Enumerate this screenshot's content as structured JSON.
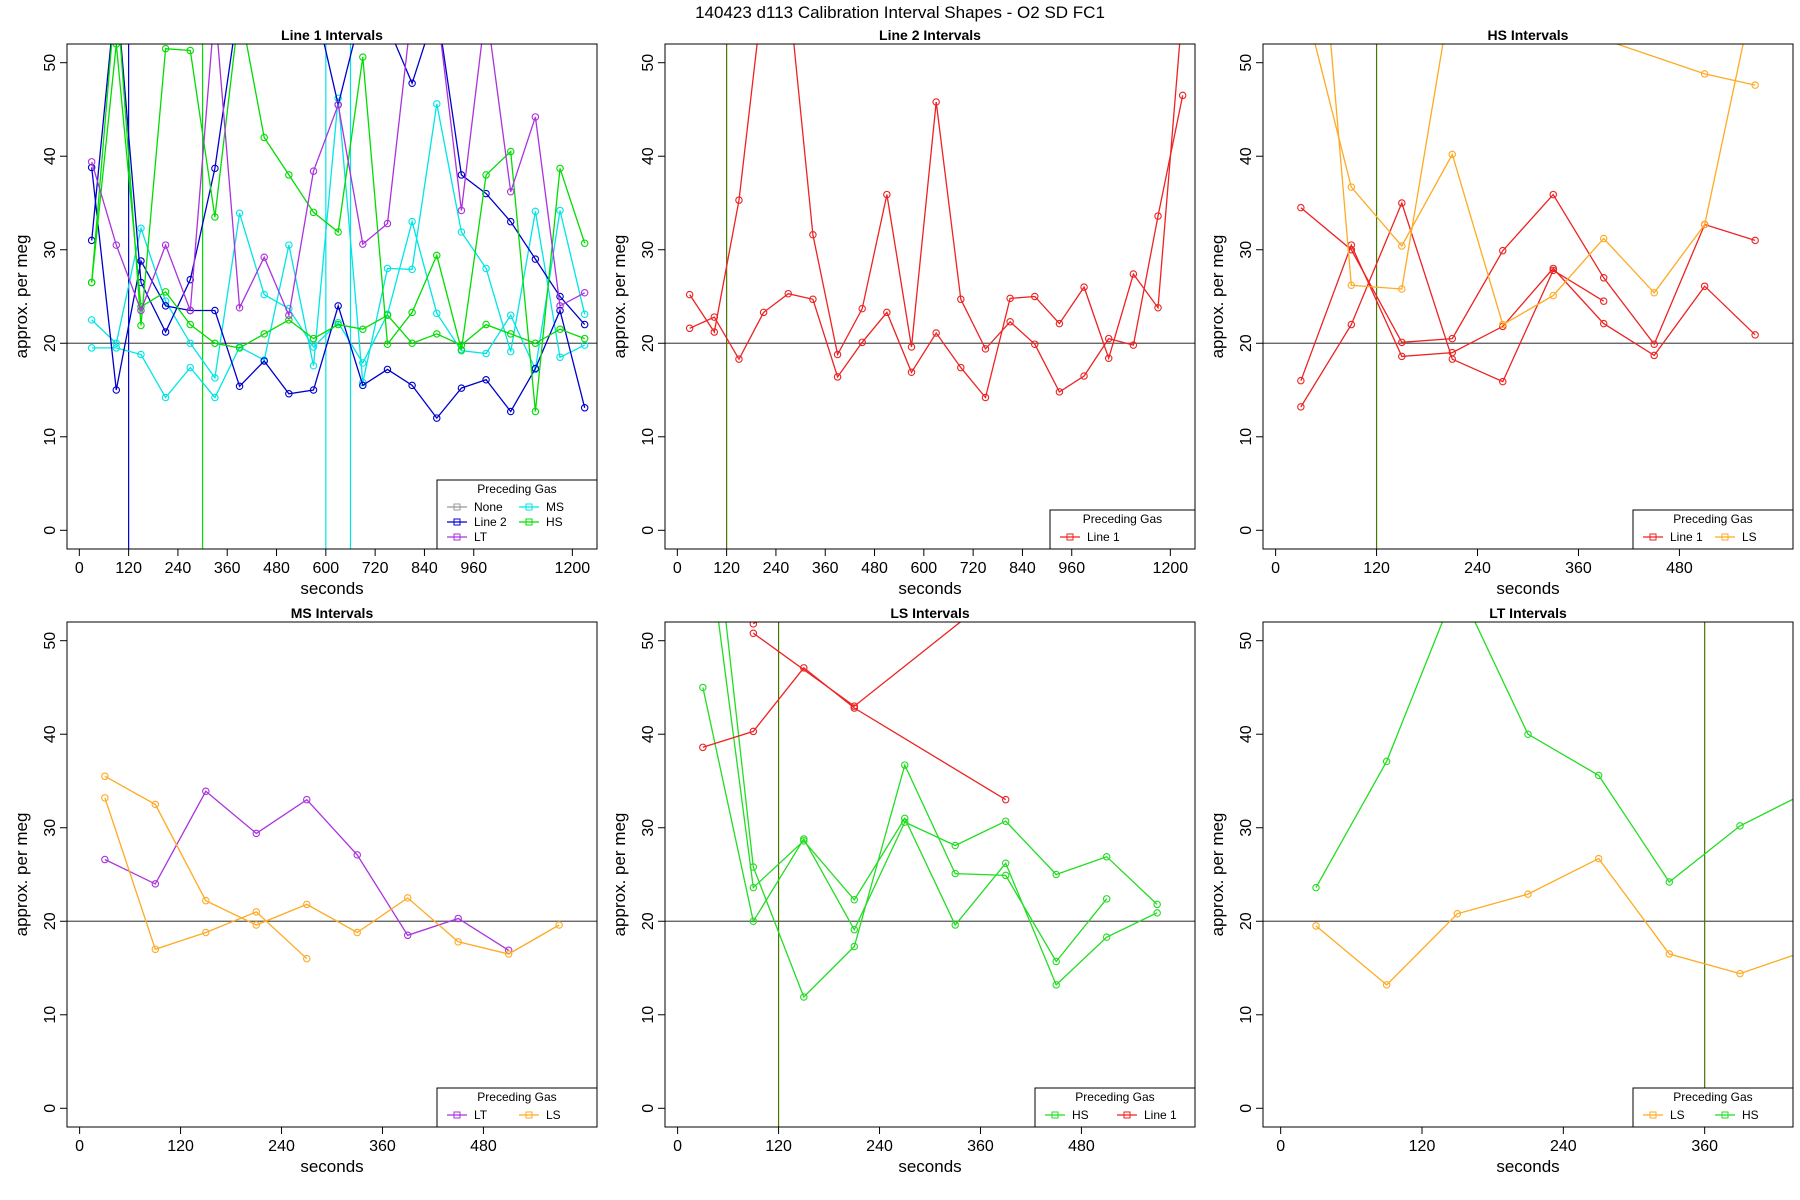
{
  "figure_title": "140423   d113   Calibration Interval Shapes - O2 SD FC1",
  "chart_data": [
    {
      "type": "line",
      "title": "Line 1 Intervals",
      "xlabel": "seconds",
      "ylabel": "approx. per meg",
      "xlim": [
        -30,
        1260
      ],
      "ylim": [
        -2,
        52
      ],
      "xticks": [
        0,
        120,
        240,
        360,
        480,
        600,
        720,
        840,
        960,
        1200
      ],
      "yticks": [
        0,
        10,
        20,
        30,
        40,
        50
      ],
      "hline": 20,
      "vlines": [
        {
          "x": 120,
          "color": "#0000cc"
        },
        {
          "x": 300,
          "color": "#00dd00"
        },
        {
          "x": 600,
          "color": "#00e5e5"
        },
        {
          "x": 660,
          "color": "#00e5e5"
        }
      ],
      "legend": {
        "title": "Preceding Gas",
        "position": "bottom-right",
        "columns": 2
      },
      "series": [
        {
          "name": "None",
          "color": "#999999",
          "x": [],
          "y": []
        },
        {
          "name": "MS",
          "color": "#00e5e5",
          "x": [
            30,
            90,
            150,
            210,
            270,
            330,
            390,
            450,
            510,
            570,
            630,
            690,
            750,
            810,
            870,
            930,
            990,
            1050,
            1110,
            1170,
            1230
          ],
          "y": [
            19.5,
            19.5,
            18.8,
            14.2,
            17.4,
            14.2,
            19.6,
            18.2,
            30.5,
            17.6,
            46.2,
            15.8,
            28.0,
            27.9,
            45.6,
            31.9,
            28.0,
            19.1,
            34.1,
            18.5,
            19.8
          ]
        },
        {
          "name": "MS",
          "color": "#00e5e5",
          "x": [
            30,
            90,
            150,
            210,
            270,
            330,
            390,
            450,
            510,
            570,
            630,
            690,
            750,
            810,
            870,
            930,
            990,
            1050,
            1110,
            1170,
            1230
          ],
          "y": [
            22.5,
            20.0,
            32.3,
            24.5,
            20.0,
            16.3,
            33.9,
            25.2,
            23.7,
            19.6,
            22.2,
            17.9,
            23.1,
            33.0,
            23.2,
            19.2,
            18.9,
            23.0,
            17.2,
            34.2,
            23.1
          ]
        },
        {
          "name": "Line 2",
          "color": "#0000cc",
          "x": [
            30,
            90,
            150,
            210,
            270,
            330,
            390,
            450,
            510,
            570,
            630,
            690,
            750,
            810,
            870,
            930,
            990,
            1050,
            1110,
            1170,
            1230
          ],
          "y": [
            38.8,
            15.0,
            28.8,
            24.0,
            23.5,
            23.5,
            15.4,
            18.1,
            14.6,
            15.0,
            24.0,
            15.5,
            17.2,
            15.5,
            12.0,
            15.2,
            16.1,
            12.7,
            17.3,
            23.5,
            13.1
          ]
        },
        {
          "name": "Line 2",
          "color": "#0000cc",
          "x": [
            30,
            90,
            150,
            210,
            270,
            330,
            390,
            450,
            510,
            570,
            630,
            690,
            750,
            810,
            870,
            930,
            990,
            1050,
            1110,
            1170,
            1230
          ],
          "y": [
            31.0,
            58.0,
            26.5,
            21.2,
            26.8,
            38.7,
            57.0,
            56.0,
            55.0,
            57.0,
            45.5,
            56.0,
            54.0,
            47.8,
            56.0,
            38.0,
            36.0,
            33.0,
            29.0,
            25.0,
            22.0
          ]
        },
        {
          "name": "HS",
          "color": "#00dd00",
          "x": [
            30,
            90,
            150,
            210,
            270,
            330,
            390,
            450,
            510,
            570,
            630,
            690,
            750,
            810,
            870,
            930,
            990,
            1050,
            1110,
            1170,
            1230
          ],
          "y": [
            26.5,
            58.0,
            21.9,
            51.5,
            51.3,
            33.5,
            56.0,
            42.0,
            38.0,
            34.0,
            31.9,
            50.6,
            19.9,
            23.3,
            29.4,
            19.3,
            38.0,
            40.5,
            12.7,
            38.7,
            30.7
          ]
        },
        {
          "name": "HS",
          "color": "#00dd00",
          "x": [
            30,
            90,
            150,
            210,
            270,
            330,
            390,
            450,
            510,
            570,
            630,
            690,
            750,
            810,
            870,
            930,
            990,
            1050,
            1110,
            1170,
            1230
          ],
          "y": [
            26.5,
            52.0,
            23.9,
            25.5,
            22.0,
            20.0,
            19.5,
            21.0,
            22.5,
            20.5,
            22.0,
            21.5,
            23.0,
            20.0,
            21.0,
            19.8,
            22.0,
            21.0,
            20.0,
            21.5,
            20.5
          ]
        },
        {
          "name": "LT",
          "color": "#aa33dd",
          "x": [
            30,
            90,
            150,
            210,
            270,
            330,
            390,
            450,
            510,
            570,
            630,
            690,
            750,
            810,
            870,
            930,
            990,
            1050,
            1110,
            1170,
            1230
          ],
          "y": [
            39.4,
            30.5,
            23.5,
            30.5,
            23.5,
            56.0,
            23.8,
            29.2,
            23.0,
            38.4,
            45.5,
            30.6,
            32.8,
            56.0,
            56.0,
            34.2,
            56.0,
            36.2,
            44.2,
            24.0,
            25.4
          ]
        }
      ]
    },
    {
      "type": "line",
      "title": "Line 2 Intervals",
      "xlabel": "seconds",
      "ylabel": "approx. per meg",
      "xlim": [
        -30,
        1260
      ],
      "ylim": [
        -2,
        52
      ],
      "xticks": [
        0,
        120,
        240,
        360,
        480,
        600,
        720,
        840,
        960,
        1200
      ],
      "yticks": [
        0,
        10,
        20,
        30,
        40,
        50
      ],
      "hline": 20,
      "vlines": [
        {
          "x": 120,
          "color": "#447700"
        }
      ],
      "legend": {
        "title": "Preceding Gas",
        "position": "bottom-right",
        "columns": 1
      },
      "series": [
        {
          "name": "Line 1",
          "color": "#ee2222",
          "x": [
            30,
            90,
            150,
            210,
            270,
            330,
            390,
            450,
            510,
            570,
            630,
            690,
            750,
            810,
            870,
            930,
            990,
            1050,
            1110,
            1170,
            1230
          ],
          "y": [
            21.6,
            22.8,
            18.3,
            23.3,
            25.3,
            24.7,
            16.4,
            20.1,
            23.3,
            16.9,
            21.1,
            17.4,
            14.2,
            24.8,
            25.0,
            22.1,
            26.0,
            18.4,
            27.4,
            23.8,
            56.0
          ]
        },
        {
          "name": "Line 1",
          "color": "#ee2222",
          "x": [
            30,
            90,
            150,
            210,
            270,
            330,
            390,
            450,
            510,
            570,
            630,
            690,
            750,
            810,
            870,
            930,
            990,
            1050,
            1110,
            1170,
            1230
          ],
          "y": [
            25.2,
            21.2,
            35.3,
            58.0,
            58.0,
            31.6,
            18.8,
            23.7,
            35.9,
            19.6,
            45.8,
            24.7,
            19.4,
            22.3,
            19.9,
            14.8,
            16.5,
            20.5,
            19.8,
            33.6,
            46.5
          ]
        }
      ]
    },
    {
      "type": "line",
      "title": "HS Intervals",
      "xlabel": "seconds",
      "ylabel": "approx. per meg",
      "xlim": [
        -15,
        615
      ],
      "ylim": [
        -2,
        52
      ],
      "xticks": [
        0,
        120,
        240,
        360,
        480
      ],
      "yticks": [
        0,
        10,
        20,
        30,
        40,
        50
      ],
      "hline": 20,
      "vlines": [
        {
          "x": 120,
          "color": "#447700"
        }
      ],
      "legend": {
        "title": "Preceding Gas",
        "position": "bottom-right",
        "columns": 2
      },
      "series": [
        {
          "name": "Line 1",
          "color": "#ee2222",
          "x": [
            30,
            90,
            150,
            210,
            270,
            330,
            390,
            450,
            510,
            570
          ],
          "y": [
            34.5,
            30.0,
            20.1,
            20.5,
            29.9,
            35.9,
            27.0,
            19.9,
            32.7,
            31.0
          ]
        },
        {
          "name": "Line 1",
          "color": "#ee2222",
          "x": [
            30,
            90,
            150,
            210,
            270,
            330,
            390,
            450,
            510,
            570
          ],
          "y": [
            16.0,
            30.5,
            18.6,
            19.0,
            21.8,
            28.0,
            22.1,
            18.7,
            26.1,
            20.9
          ]
        },
        {
          "name": "Line 1",
          "color": "#ee2222",
          "x": [
            30,
            90,
            150,
            210,
            270,
            330,
            390
          ],
          "y": [
            13.2,
            22.0,
            35.0,
            18.3,
            15.9,
            27.8,
            24.5
          ]
        },
        {
          "name": "LS",
          "color": "#ffaa22",
          "x": [
            30,
            90,
            150,
            210,
            270,
            330,
            390,
            450,
            510,
            570
          ],
          "y": [
            58.0,
            36.7,
            30.4,
            40.2,
            22.0,
            25.1,
            31.2,
            25.4,
            32.7,
            58.0
          ]
        },
        {
          "name": "LS",
          "color": "#ffaa22",
          "x": [
            60,
            90,
            150,
            210,
            510,
            570
          ],
          "y": [
            58.0,
            26.2,
            25.8,
            58.0,
            48.8,
            47.6
          ]
        }
      ]
    },
    {
      "type": "line",
      "title": "MS Intervals",
      "xlabel": "seconds",
      "ylabel": "approx. per meg",
      "xlim": [
        -15,
        615
      ],
      "ylim": [
        -2,
        52
      ],
      "xticks": [
        0,
        120,
        240,
        360,
        480
      ],
      "yticks": [
        0,
        10,
        20,
        30,
        40,
        50
      ],
      "hline": 20,
      "vlines": [],
      "legend": {
        "title": "Preceding Gas",
        "position": "bottom-right",
        "columns": 2
      },
      "series": [
        {
          "name": "LT",
          "color": "#aa33dd",
          "x": [
            30,
            90,
            150,
            210,
            270,
            330,
            390,
            450,
            510
          ],
          "y": [
            26.6,
            24.0,
            33.9,
            29.4,
            33.0,
            27.1,
            18.5,
            20.3,
            16.9
          ]
        },
        {
          "name": "LS",
          "color": "#ffaa22",
          "x": [
            30,
            90,
            150,
            210,
            270,
            330,
            390,
            450,
            510,
            570
          ],
          "y": [
            35.5,
            32.5,
            22.2,
            19.6,
            21.8,
            18.8,
            22.5,
            17.8,
            16.5,
            19.6
          ]
        },
        {
          "name": "LS",
          "color": "#ffaa22",
          "x": [
            30,
            90,
            150,
            210,
            270
          ],
          "y": [
            33.2,
            17.0,
            18.8,
            21.0,
            16.0
          ]
        }
      ]
    },
    {
      "type": "line",
      "title": "LS Intervals",
      "xlabel": "seconds",
      "ylabel": "approx. per meg",
      "xlim": [
        -15,
        615
      ],
      "ylim": [
        -2,
        52
      ],
      "xticks": [
        0,
        120,
        240,
        360,
        480
      ],
      "yticks": [
        0,
        10,
        20,
        30,
        40,
        50
      ],
      "hline": 20,
      "vlines": [
        {
          "x": 120,
          "color": "#447700"
        }
      ],
      "legend": {
        "title": "Preceding Gas",
        "position": "bottom-right",
        "columns": 2
      },
      "series": [
        {
          "name": "HS",
          "color": "#22dd22",
          "x": [
            30,
            90,
            150,
            210,
            270,
            330,
            390,
            450,
            510,
            570
          ],
          "y": [
            45.0,
            20.0,
            28.8,
            19.1,
            30.6,
            28.1,
            30.7,
            25.0,
            26.9,
            21.8
          ]
        },
        {
          "name": "HS",
          "color": "#22dd22",
          "x": [
            40,
            90,
            150,
            210,
            270,
            330,
            390,
            450,
            510,
            570
          ],
          "y": [
            58.0,
            23.6,
            28.6,
            22.3,
            31.0,
            19.6,
            26.2,
            13.2,
            18.3,
            20.9
          ]
        },
        {
          "name": "HS",
          "color": "#22dd22",
          "x": [
            50,
            90,
            150,
            210,
            270,
            330,
            390,
            450,
            510
          ],
          "y": [
            58.0,
            25.8,
            11.9,
            17.3,
            36.7,
            25.1,
            24.9,
            15.7,
            22.4
          ]
        },
        {
          "name": "Line 1",
          "color": "#ee2222",
          "x": [
            30,
            90,
            150,
            210,
            390
          ],
          "y": [
            38.6,
            40.3,
            47.1,
            42.8,
            33.0
          ]
        },
        {
          "name": "Line 1",
          "color": "#ee2222",
          "x": [
            90,
            210,
            420
          ],
          "y": [
            50.8,
            43.0,
            58.0
          ]
        },
        {
          "name": "Line 1",
          "color": "#ee2222",
          "x": [
            90,
            180
          ],
          "y": [
            51.8,
            58.0
          ]
        }
      ]
    },
    {
      "type": "line",
      "title": "LT Intervals",
      "xlabel": "seconds",
      "ylabel": "approx. per meg",
      "xlim": [
        -15,
        435
      ],
      "ylim": [
        -2,
        52
      ],
      "xticks": [
        0,
        120,
        240,
        360
      ],
      "yticks": [
        0,
        10,
        20,
        30,
        40,
        50
      ],
      "hline": 20,
      "vlines": [
        {
          "x": 360,
          "color": "#447700"
        }
      ],
      "legend": {
        "title": "Preceding Gas",
        "position": "bottom-right",
        "columns": 2
      },
      "series": [
        {
          "name": "LS",
          "color": "#ffaa22",
          "x": [
            30,
            90,
            150,
            210,
            270,
            330,
            390,
            450
          ],
          "y": [
            19.5,
            13.2,
            20.8,
            22.9,
            26.7,
            16.5,
            14.4,
            17.0
          ]
        },
        {
          "name": "HS",
          "color": "#22dd22",
          "x": [
            30,
            90,
            150,
            210,
            270,
            330,
            390,
            450
          ],
          "y": [
            23.6,
            37.1,
            56.0,
            40.0,
            35.6,
            24.2,
            30.2,
            34.0
          ]
        }
      ]
    }
  ]
}
